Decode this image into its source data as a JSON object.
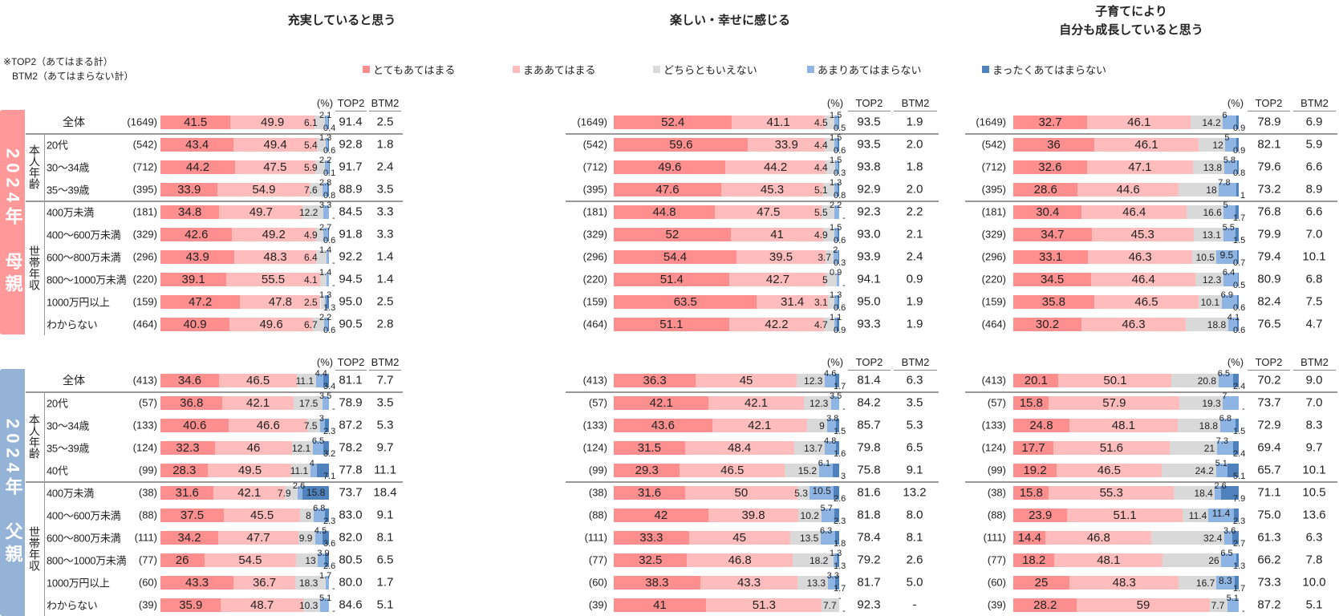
{
  "chart_data": {
    "type": "bar",
    "orientation": "horizontal-stacked-100",
    "titles": [
      "充実していると思う",
      "楽しい・幸せに感じる",
      "子育てにより\n自分も成長していると思う"
    ],
    "note": [
      "※TOP2（あてはまる計）",
      "BTM2（あてはまらない計）"
    ],
    "unit_label": "(%)",
    "col_top2": "TOP2",
    "col_btm2": "BTM2",
    "series": [
      {
        "name": "とてもあてはまる",
        "color": "#ff8f8f"
      },
      {
        "name": "まああてはまる",
        "color": "#ffbcbc"
      },
      {
        "name": "どちらともいえない",
        "color": "#d9d9d9"
      },
      {
        "name": "あまりあてはまらない",
        "color": "#8eb4e3"
      },
      {
        "name": "まったくあてはまらない",
        "color": "#4f81bd"
      }
    ],
    "sections": {
      "mother": {
        "band": "2024年　母親",
        "color": "#ff9999",
        "group_age": "本人年齢",
        "group_income": "世帯年収"
      },
      "father": {
        "band": "2024年　父親",
        "color": "#95b3d7",
        "group_age": "本人年齢",
        "group_income": "世帯年収"
      }
    },
    "rows": {
      "mother": [
        {
          "label": "全体",
          "n": "(1649)"
        },
        {
          "label": "20代",
          "n": "(542)"
        },
        {
          "label": "30～34歳",
          "n": "(712)"
        },
        {
          "label": "35～39歳",
          "n": "(395)"
        },
        {
          "label": "400万未満",
          "n": "(181)"
        },
        {
          "label": "400～600万未満",
          "n": "(329)"
        },
        {
          "label": "600～800万未満",
          "n": "(296)"
        },
        {
          "label": "800～1000万未満",
          "n": "(220)"
        },
        {
          "label": "1000万円以上",
          "n": "(159)"
        },
        {
          "label": "わからない",
          "n": "(464)"
        }
      ],
      "father": [
        {
          "label": "全体",
          "n": "(413)"
        },
        {
          "label": "20代",
          "n": "(57)"
        },
        {
          "label": "30～34歳",
          "n": "(133)"
        },
        {
          "label": "35～39歳",
          "n": "(124)"
        },
        {
          "label": "40代",
          "n": "(99)"
        },
        {
          "label": "400万未満",
          "n": "(38)"
        },
        {
          "label": "400～600万未満",
          "n": "(88)"
        },
        {
          "label": "600～800万未満",
          "n": "(111)"
        },
        {
          "label": "800～1000万未満",
          "n": "(77)"
        },
        {
          "label": "1000万円以上",
          "n": "(60)"
        },
        {
          "label": "わからない",
          "n": "(39)"
        }
      ]
    },
    "panels": [
      {
        "mother": [
          {
            "v": [
              41.5,
              49.9,
              6.1,
              2.1,
              0.4
            ],
            "top2": "91.4",
            "btm2": "2.5"
          },
          {
            "v": [
              43.4,
              49.4,
              5.4,
              1.3,
              0.6
            ],
            "top2": "92.8",
            "btm2": "1.8"
          },
          {
            "v": [
              44.2,
              47.5,
              5.9,
              2.2,
              0.1
            ],
            "top2": "91.7",
            "btm2": "2.4"
          },
          {
            "v": [
              33.9,
              54.9,
              7.6,
              2.8,
              0.8
            ],
            "top2": "88.9",
            "btm2": "3.5"
          },
          {
            "v": [
              34.8,
              49.7,
              12.2,
              3.3,
              null
            ],
            "top2": "84.5",
            "btm2": "3.3"
          },
          {
            "v": [
              42.6,
              49.2,
              4.9,
              2.7,
              0.6
            ],
            "top2": "91.8",
            "btm2": "3.3"
          },
          {
            "v": [
              43.9,
              48.3,
              6.4,
              1.4,
              null
            ],
            "top2": "92.2",
            "btm2": "1.4"
          },
          {
            "v": [
              39.1,
              55.5,
              4.1,
              1.4,
              null
            ],
            "top2": "94.5",
            "btm2": "1.4"
          },
          {
            "v": [
              47.2,
              47.8,
              2.5,
              1.3,
              1.3
            ],
            "top2": "95.0",
            "btm2": "2.5"
          },
          {
            "v": [
              40.9,
              49.6,
              6.7,
              2.2,
              0.6
            ],
            "top2": "90.5",
            "btm2": "2.8"
          }
        ],
        "father": [
          {
            "v": [
              34.6,
              46.5,
              11.1,
              4.4,
              3.4
            ],
            "top2": "81.1",
            "btm2": "7.7"
          },
          {
            "v": [
              36.8,
              42.1,
              17.5,
              3.5,
              null
            ],
            "top2": "78.9",
            "btm2": "3.5"
          },
          {
            "v": [
              40.6,
              46.6,
              7.5,
              3.0,
              2.3
            ],
            "top2": "87.2",
            "btm2": "5.3"
          },
          {
            "v": [
              32.3,
              46.0,
              12.1,
              6.5,
              3.2
            ],
            "top2": "78.2",
            "btm2": "9.7"
          },
          {
            "v": [
              28.3,
              49.5,
              11.1,
              4.0,
              7.1
            ],
            "top2": "77.8",
            "btm2": "11.1"
          },
          {
            "v": [
              31.6,
              42.1,
              7.9,
              2.6,
              15.8
            ],
            "top2": "73.7",
            "btm2": "18.4"
          },
          {
            "v": [
              37.5,
              45.5,
              8.0,
              6.8,
              2.3
            ],
            "top2": "83.0",
            "btm2": "9.1"
          },
          {
            "v": [
              34.2,
              47.7,
              9.9,
              4.5,
              3.6
            ],
            "top2": "82.0",
            "btm2": "8.1"
          },
          {
            "v": [
              26.0,
              54.5,
              13.0,
              3.9,
              2.6
            ],
            "top2": "80.5",
            "btm2": "6.5"
          },
          {
            "v": [
              43.3,
              36.7,
              18.3,
              1.7,
              null
            ],
            "top2": "80.0",
            "btm2": "1.7"
          },
          {
            "v": [
              35.9,
              48.7,
              10.3,
              5.1,
              null
            ],
            "top2": "84.6",
            "btm2": "5.1"
          }
        ]
      },
      {
        "mother": [
          {
            "v": [
              52.4,
              41.1,
              4.5,
              1.5,
              0.5
            ],
            "top2": "93.5",
            "btm2": "1.9"
          },
          {
            "v": [
              59.6,
              33.9,
              4.4,
              1.5,
              0.6
            ],
            "top2": "93.5",
            "btm2": "2.0"
          },
          {
            "v": [
              49.6,
              44.2,
              4.4,
              1.5,
              0.3
            ],
            "top2": "93.8",
            "btm2": "1.8"
          },
          {
            "v": [
              47.6,
              45.3,
              5.1,
              1.3,
              0.8
            ],
            "top2": "92.9",
            "btm2": "2.0"
          },
          {
            "v": [
              44.8,
              47.5,
              5.5,
              2.2,
              null
            ],
            "top2": "92.3",
            "btm2": "2.2"
          },
          {
            "v": [
              52.0,
              41.0,
              4.9,
              1.5,
              0.6
            ],
            "top2": "93.0",
            "btm2": "2.1"
          },
          {
            "v": [
              54.4,
              39.5,
              3.7,
              2.0,
              0.3
            ],
            "top2": "93.9",
            "btm2": "2.4"
          },
          {
            "v": [
              51.4,
              42.7,
              5.0,
              0.9,
              null
            ],
            "top2": "94.1",
            "btm2": "0.9"
          },
          {
            "v": [
              63.5,
              31.4,
              3.1,
              1.3,
              0.6
            ],
            "top2": "95.0",
            "btm2": "1.9"
          },
          {
            "v": [
              51.1,
              42.2,
              4.7,
              1.1,
              0.9
            ],
            "top2": "93.3",
            "btm2": "1.9"
          }
        ],
        "father": [
          {
            "v": [
              36.3,
              45.0,
              12.3,
              4.6,
              1.7
            ],
            "top2": "81.4",
            "btm2": "6.3"
          },
          {
            "v": [
              42.1,
              42.1,
              12.3,
              3.5,
              null
            ],
            "top2": "84.2",
            "btm2": "3.5"
          },
          {
            "v": [
              43.6,
              42.1,
              9.0,
              3.8,
              1.5
            ],
            "top2": "85.7",
            "btm2": "5.3"
          },
          {
            "v": [
              31.5,
              48.4,
              13.7,
              4.8,
              1.6
            ],
            "top2": "79.8",
            "btm2": "6.5"
          },
          {
            "v": [
              29.3,
              46.5,
              15.2,
              6.1,
              3.0
            ],
            "top2": "75.8",
            "btm2": "9.1"
          },
          {
            "v": [
              31.6,
              50.0,
              5.3,
              10.5,
              2.6
            ],
            "top2": "81.6",
            "btm2": "13.2"
          },
          {
            "v": [
              42.0,
              39.8,
              10.2,
              5.7,
              2.3
            ],
            "top2": "81.8",
            "btm2": "8.0"
          },
          {
            "v": [
              33.3,
              45.0,
              13.5,
              6.3,
              1.8
            ],
            "top2": "78.4",
            "btm2": "8.1"
          },
          {
            "v": [
              32.5,
              46.8,
              18.2,
              1.3,
              1.3
            ],
            "top2": "79.2",
            "btm2": "2.6"
          },
          {
            "v": [
              38.3,
              43.3,
              13.3,
              3.3,
              1.7
            ],
            "top2": "81.7",
            "btm2": "5.0"
          },
          {
            "v": [
              41.0,
              51.3,
              7.7,
              null,
              null
            ],
            "top2": "92.3",
            "btm2": "-"
          }
        ]
      },
      {
        "mother": [
          {
            "v": [
              32.7,
              46.1,
              14.2,
              6.0,
              0.9
            ],
            "top2": "78.9",
            "btm2": "6.9"
          },
          {
            "v": [
              36.0,
              46.1,
              12.0,
              5.0,
              0.9
            ],
            "top2": "82.1",
            "btm2": "5.9"
          },
          {
            "v": [
              32.6,
              47.1,
              13.8,
              5.8,
              0.8
            ],
            "top2": "79.6",
            "btm2": "6.6"
          },
          {
            "v": [
              28.6,
              44.6,
              18.0,
              7.8,
              1.0
            ],
            "top2": "73.2",
            "btm2": "8.9"
          },
          {
            "v": [
              30.4,
              46.4,
              16.6,
              5.0,
              1.7
            ],
            "top2": "76.8",
            "btm2": "6.6"
          },
          {
            "v": [
              34.7,
              45.3,
              13.1,
              5.5,
              1.5
            ],
            "top2": "79.9",
            "btm2": "7.0"
          },
          {
            "v": [
              33.1,
              46.3,
              10.5,
              9.5,
              0.7
            ],
            "top2": "79.4",
            "btm2": "10.1"
          },
          {
            "v": [
              34.5,
              46.4,
              12.3,
              6.4,
              0.5
            ],
            "top2": "80.9",
            "btm2": "6.8"
          },
          {
            "v": [
              35.8,
              46.5,
              10.1,
              6.9,
              0.6
            ],
            "top2": "82.4",
            "btm2": "7.5"
          },
          {
            "v": [
              30.2,
              46.3,
              18.8,
              4.1,
              0.6
            ],
            "top2": "76.5",
            "btm2": "4.7"
          }
        ],
        "father": [
          {
            "v": [
              20.1,
              50.1,
              20.8,
              6.5,
              2.4
            ],
            "top2": "70.2",
            "btm2": "9.0"
          },
          {
            "v": [
              15.8,
              57.9,
              19.3,
              7.0,
              null
            ],
            "top2": "73.7",
            "btm2": "7.0"
          },
          {
            "v": [
              24.8,
              48.1,
              18.8,
              6.8,
              1.5
            ],
            "top2": "72.9",
            "btm2": "8.3"
          },
          {
            "v": [
              17.7,
              51.6,
              21.0,
              7.3,
              2.4
            ],
            "top2": "69.4",
            "btm2": "9.7"
          },
          {
            "v": [
              19.2,
              46.5,
              24.2,
              5.1,
              5.1
            ],
            "top2": "65.7",
            "btm2": "10.1"
          },
          {
            "v": [
              15.8,
              55.3,
              18.4,
              2.6,
              7.9
            ],
            "top2": "71.1",
            "btm2": "10.5"
          },
          {
            "v": [
              23.9,
              51.1,
              11.4,
              11.4,
              2.3
            ],
            "top2": "75.0",
            "btm2": "13.6"
          },
          {
            "v": [
              14.4,
              46.8,
              32.4,
              3.6,
              2.7
            ],
            "top2": "61.3",
            "btm2": "6.3"
          },
          {
            "v": [
              18.2,
              48.1,
              26.0,
              6.5,
              1.3
            ],
            "top2": "66.2",
            "btm2": "7.8"
          },
          {
            "v": [
              25.0,
              48.3,
              16.7,
              8.3,
              1.7
            ],
            "top2": "73.3",
            "btm2": "10.0"
          },
          {
            "v": [
              28.2,
              59.0,
              7.7,
              5.1,
              null
            ],
            "top2": "87.2",
            "btm2": "5.1"
          }
        ]
      }
    ]
  }
}
